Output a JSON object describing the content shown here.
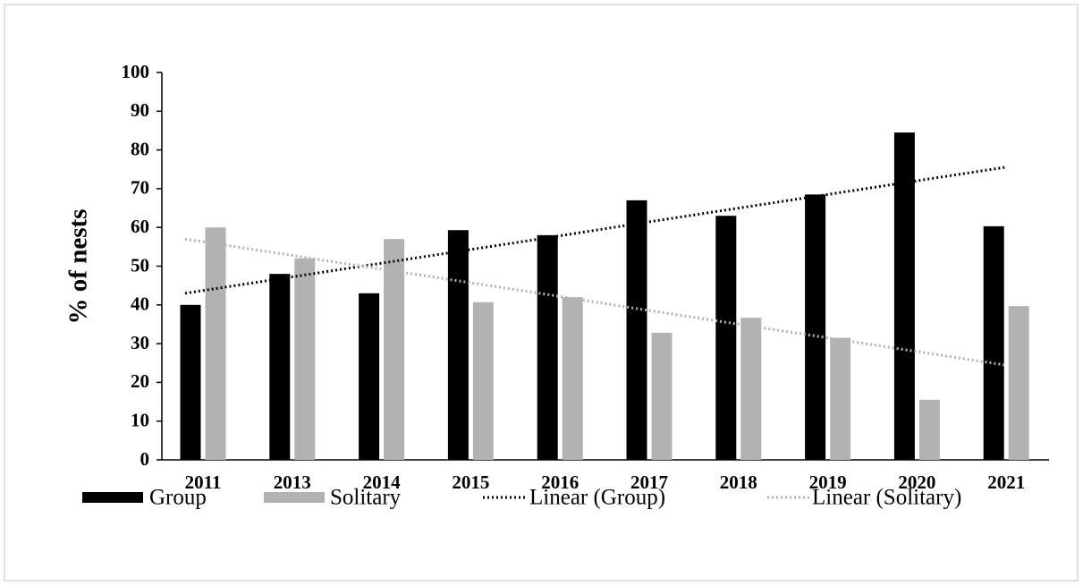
{
  "chart_data": {
    "type": "bar",
    "y_label": "% of nests",
    "categories": [
      "2011",
      "2013",
      "2014",
      "2015",
      "2016",
      "2017",
      "2018",
      "2019",
      "2020",
      "2021"
    ],
    "series": [
      {
        "name": "Group",
        "color": "#000000",
        "values": [
          40,
          48,
          43,
          59.3,
          58,
          67,
          63,
          68.5,
          84.5,
          60.3
        ]
      },
      {
        "name": "Solitary",
        "color": "#b2b2b2",
        "values": [
          60,
          52,
          57,
          40.7,
          42,
          32.8,
          36.7,
          31.5,
          15.5,
          39.7
        ]
      },
      {
        "name": "Linear (Group)",
        "type": "line",
        "style": "dotted",
        "color": "#000000",
        "values": [
          43,
          46.6,
          50.2,
          53.8,
          57.4,
          61.1,
          64.7,
          68.3,
          71.9,
          75.5
        ]
      },
      {
        "name": "Linear (Solitary)",
        "type": "line",
        "style": "dotted",
        "color": "#b2b2b2",
        "values": [
          57,
          53.4,
          49.8,
          46.2,
          42.6,
          38.9,
          35.3,
          31.7,
          28.1,
          24.5
        ]
      }
    ],
    "ylim": [
      0,
      100
    ],
    "yticks": [
      0,
      10,
      20,
      30,
      40,
      50,
      60,
      70,
      80,
      90,
      100
    ],
    "legend": "bottom",
    "grid": false
  }
}
